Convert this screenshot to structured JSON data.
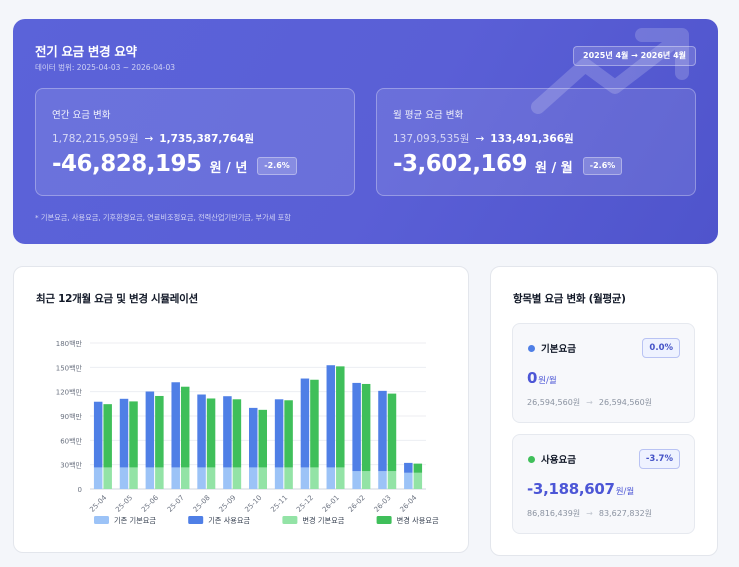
{
  "summary": {
    "title": "전기 요금 변경 요약",
    "data_range": "데이터 범위: 2025-04-03 ~ 2026-04-03",
    "period_badge": "2025년 4월 → 2026년 4월",
    "annual": {
      "label": "연간 요금 변화",
      "from": "1,782,215,959원",
      "to": "1,735,387,764원",
      "value": "-46,828,195",
      "unit": "원 / 년",
      "pct": "-2.6%"
    },
    "monthly": {
      "label": "월 평균 요금 변화",
      "from": "137,093,535원",
      "to": "133,491,366원",
      "value": "-3,602,169",
      "unit": "원 / 월",
      "pct": "-2.6%"
    },
    "note": "* 기본요금, 사용요금, 기후환경요금, 연료비조정요금, 전력산업기반기금, 부가세 포함",
    "arrow_symbol": "→"
  },
  "chart_panel": {
    "title": "최근 12개월 요금 및 변경 시뮬레이션"
  },
  "chart_data": {
    "type": "bar",
    "categories": [
      "25-04",
      "25-05",
      "25-06",
      "25-07",
      "25-08",
      "25-09",
      "25-10",
      "25-11",
      "25-12",
      "26-01",
      "26-02",
      "26-03",
      "26-04"
    ],
    "ylim": [
      0,
      180
    ],
    "yticks": [
      0,
      30,
      60,
      90,
      120,
      150,
      180
    ],
    "ytick_labels": [
      "0",
      "30백만",
      "60백만",
      "90백만",
      "120백만",
      "150백만",
      "180백만"
    ],
    "grid": true,
    "legend_position": "bottom",
    "stacks": [
      {
        "series": [
          {
            "name": "기존 기본요금",
            "color": "#9cc3f7",
            "values": [
              26.6,
              26.6,
              26.6,
              26.6,
              26.6,
              26.6,
              26.6,
              26.6,
              26.6,
              26.6,
              22.0,
              22.0,
              20.0
            ]
          },
          {
            "name": "기존 사용요금",
            "color": "#4f7fe6",
            "values": [
              81.0,
              84.6,
              93.6,
              105.0,
              89.9,
              87.8,
              73.4,
              84.0,
              109.6,
              126.0,
              108.8,
              99.0,
              12.2
            ]
          }
        ]
      },
      {
        "series": [
          {
            "name": "변경 기본요금",
            "color": "#93e3a6",
            "values": [
              26.6,
              26.6,
              26.6,
              26.6,
              26.6,
              26.6,
              26.6,
              26.6,
              26.6,
              26.6,
              22.0,
              22.0,
              20.0
            ]
          },
          {
            "name": "변경 사용요금",
            "color": "#3fbf5a",
            "values": [
              78.0,
              81.4,
              88.1,
              99.5,
              85.0,
              84.0,
              71.0,
              82.8,
              108.1,
              124.6,
              107.5,
              95.6,
              11.3
            ]
          }
        ]
      }
    ],
    "legend": [
      "기존 기본요금",
      "기존 사용요금",
      "변경 기본요금",
      "변경 사용요금"
    ]
  },
  "side_panel": {
    "title": "항목별 요금 변화 (월평균)",
    "items": [
      {
        "name": "기본요금",
        "color": "#4f7fe6",
        "pct": "0.0%",
        "value": "0",
        "unit": "원/월",
        "from": "26,594,560원",
        "to": "26,594,560원"
      },
      {
        "name": "사용요금",
        "color": "#3fbf5a",
        "pct": "-3.7%",
        "value": "-3,188,607",
        "unit": "원/월",
        "from": "86,816,439원",
        "to": "83,627,832원"
      }
    ]
  }
}
